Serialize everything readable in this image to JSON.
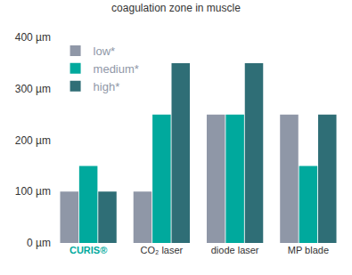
{
  "chart_data": {
    "type": "bar",
    "title": "coagulation zone in muscle",
    "categories": [
      "CURIS®",
      "CO₂ laser",
      "diode laser",
      "MP blade"
    ],
    "series": [
      {
        "name": "low*",
        "color": "#8f97a7",
        "values": [
          100,
          100,
          250,
          250
        ]
      },
      {
        "name": "medium*",
        "color": "#00a99d",
        "values": [
          150,
          250,
          250,
          150
        ]
      },
      {
        "name": "high*",
        "color": "#2f6e76",
        "values": [
          100,
          350,
          350,
          250
        ]
      }
    ],
    "ylim": [
      0,
      400
    ],
    "yticks": [
      {
        "value": 0,
        "label": "0 µm"
      },
      {
        "value": 100,
        "label": "100 µm"
      },
      {
        "value": 200,
        "label": "200 µm"
      },
      {
        "value": 300,
        "label": "300 µm"
      },
      {
        "value": 400,
        "label": "400 µm"
      }
    ],
    "grid": false,
    "legend": "top left"
  }
}
